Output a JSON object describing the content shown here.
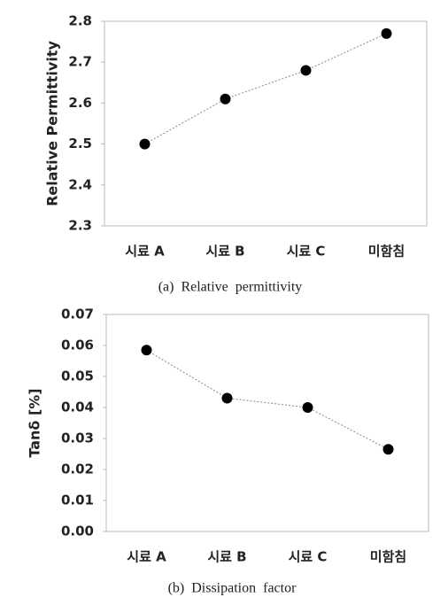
{
  "chart_data": [
    {
      "type": "line",
      "categories": [
        "시료 A",
        "시료 B",
        "시료 C",
        "미함침"
      ],
      "series": [
        {
          "name": "Relative Permittivity",
          "color": "#000000",
          "values": [
            2.5,
            2.61,
            2.68,
            2.77
          ]
        }
      ],
      "ylabel": "Relative Permittivity",
      "ylim": [
        2.3,
        2.8
      ],
      "yticks": [
        2.3,
        2.4,
        2.5,
        2.6,
        2.7,
        2.8
      ],
      "grid": false,
      "caption": "(a)  Relative  permittivity"
    },
    {
      "type": "line",
      "categories": [
        "시료 A",
        "시료 B",
        "시료 C",
        "미함침"
      ],
      "series": [
        {
          "name": "Tanδ [%]",
          "color": "#000000",
          "values": [
            0.0585,
            0.043,
            0.04,
            0.0265
          ]
        }
      ],
      "ylabel": "Tanδ [%]",
      "ylim": [
        0,
        0.07
      ],
      "yticks": [
        {
          "value": 0,
          "label": "0.00"
        },
        0.01,
        0.02,
        0.03,
        0.04,
        0.05,
        0.06,
        0.07
      ],
      "grid": false,
      "caption": "(b)  Dissipation  factor"
    }
  ]
}
